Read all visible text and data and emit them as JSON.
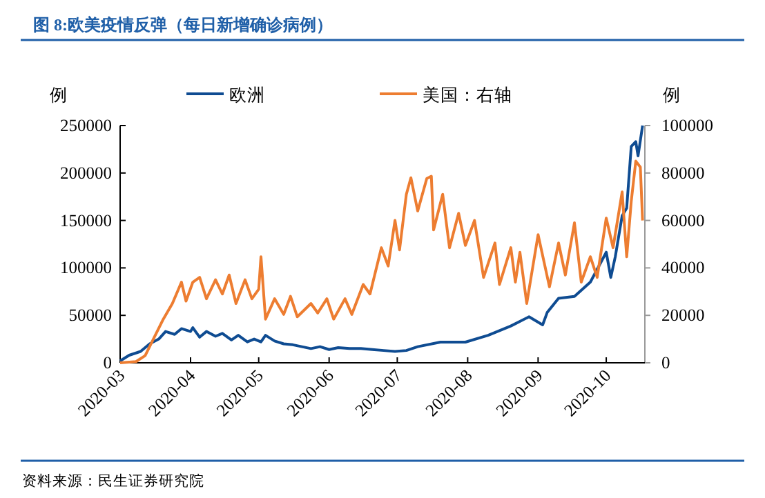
{
  "chart_data": {
    "type": "line",
    "title": "图 8:欧美疫情反弹（每日新增确诊病例）",
    "ylabel": "例",
    "y2label": "例",
    "annotations": [
      "资料来源：民生证券研究院"
    ],
    "xlim": [
      "2020-03-01",
      "2020-10-18"
    ],
    "xticks": [
      "2020-03",
      "2020-04",
      "2020-05",
      "2020-06",
      "2020-07",
      "2020-08",
      "2020-09",
      "2020-10"
    ],
    "ylim": [
      0,
      250000
    ],
    "yticks": [
      0,
      50000,
      100000,
      150000,
      200000,
      250000
    ],
    "y2lim": [
      0,
      100000
    ],
    "y2ticks": [
      0,
      20000,
      40000,
      60000,
      80000,
      100000
    ],
    "legend": "top",
    "grid": false,
    "series": [
      {
        "name": "欧洲",
        "color": "#0f4c92",
        "x": [
          "2020-03-01",
          "2020-03-05",
          "2020-03-10",
          "2020-03-14",
          "2020-03-18",
          "2020-03-21",
          "2020-03-25",
          "2020-03-28",
          "2020-04-01",
          "2020-04-02",
          "2020-04-05",
          "2020-04-08",
          "2020-04-12",
          "2020-04-15",
          "2020-04-19",
          "2020-04-22",
          "2020-04-26",
          "2020-04-29",
          "2020-05-02",
          "2020-05-04",
          "2020-05-08",
          "2020-05-12",
          "2020-05-16",
          "2020-05-20",
          "2020-05-24",
          "2020-05-28",
          "2020-06-01",
          "2020-06-05",
          "2020-06-10",
          "2020-06-15",
          "2020-06-20",
          "2020-06-25",
          "2020-06-30",
          "2020-07-05",
          "2020-07-10",
          "2020-07-20",
          "2020-07-31",
          "2020-08-10",
          "2020-08-20",
          "2020-08-28",
          "2020-09-03",
          "2020-09-05",
          "2020-09-10",
          "2020-09-17",
          "2020-09-24",
          "2020-10-01",
          "2020-10-03",
          "2020-10-05",
          "2020-10-08",
          "2020-10-10",
          "2020-10-12",
          "2020-10-14",
          "2020-10-15",
          "2020-10-17"
        ],
        "values": [
          2000,
          8000,
          12000,
          20000,
          25000,
          33000,
          30000,
          36000,
          33000,
          37000,
          27000,
          33000,
          28000,
          31000,
          24000,
          29000,
          22000,
          25000,
          22000,
          29000,
          23000,
          20000,
          19000,
          17000,
          15000,
          17000,
          14000,
          16000,
          15000,
          15000,
          14000,
          13000,
          12000,
          13000,
          17000,
          21800,
          21800,
          29000,
          38800,
          48500,
          40000,
          53000,
          68000,
          70000,
          85000,
          116500,
          90000,
          112000,
          155000,
          163000,
          228000,
          233000,
          218000,
          250000
        ]
      },
      {
        "name": "美国：右轴",
        "color": "#ed7d31",
        "axis": "y2",
        "x": [
          "2020-03-01",
          "2020-03-08",
          "2020-03-12",
          "2020-03-16",
          "2020-03-20",
          "2020-03-24",
          "2020-03-28",
          "2020-03-30",
          "2020-04-02",
          "2020-04-05",
          "2020-04-08",
          "2020-04-12",
          "2020-04-15",
          "2020-04-18",
          "2020-04-21",
          "2020-04-25",
          "2020-04-28",
          "2020-05-01",
          "2020-05-02",
          "2020-05-04",
          "2020-05-08",
          "2020-05-12",
          "2020-05-15",
          "2020-05-18",
          "2020-05-24",
          "2020-05-27",
          "2020-05-31",
          "2020-06-03",
          "2020-06-08",
          "2020-06-11",
          "2020-06-16",
          "2020-06-19",
          "2020-06-24",
          "2020-06-27",
          "2020-06-30",
          "2020-07-02",
          "2020-07-05",
          "2020-07-07",
          "2020-07-10",
          "2020-07-14",
          "2020-07-16",
          "2020-07-17",
          "2020-07-21",
          "2020-07-24",
          "2020-07-28",
          "2020-07-31",
          "2020-08-04",
          "2020-08-08",
          "2020-08-13",
          "2020-08-15",
          "2020-08-20",
          "2020-08-22",
          "2020-08-24",
          "2020-08-27",
          "2020-09-01",
          "2020-09-06",
          "2020-09-10",
          "2020-09-13",
          "2020-09-17",
          "2020-09-20",
          "2020-09-24",
          "2020-09-27",
          "2020-10-01",
          "2020-10-04",
          "2020-10-08",
          "2020-10-10",
          "2020-10-12",
          "2020-10-14",
          "2020-10-16",
          "2020-10-17"
        ],
        "values": [
          0,
          500,
          3000,
          10700,
          18400,
          25000,
          34000,
          26000,
          34000,
          36000,
          27000,
          35000,
          29000,
          37000,
          25000,
          35000,
          27000,
          31000,
          44700,
          18400,
          27000,
          20400,
          28000,
          19400,
          25000,
          21000,
          27000,
          18400,
          27000,
          20400,
          33000,
          29000,
          48500,
          40800,
          60000,
          47600,
          71000,
          78000,
          64000,
          77700,
          78600,
          56000,
          71000,
          48500,
          63000,
          49500,
          60000,
          36000,
          50500,
          33000,
          48500,
          34000,
          46600,
          25000,
          54000,
          32000,
          50500,
          37000,
          59000,
          34000,
          44700,
          36000,
          61000,
          48500,
          72000,
          44700,
          68000,
          85000,
          82500,
          60000
        ]
      }
    ]
  }
}
